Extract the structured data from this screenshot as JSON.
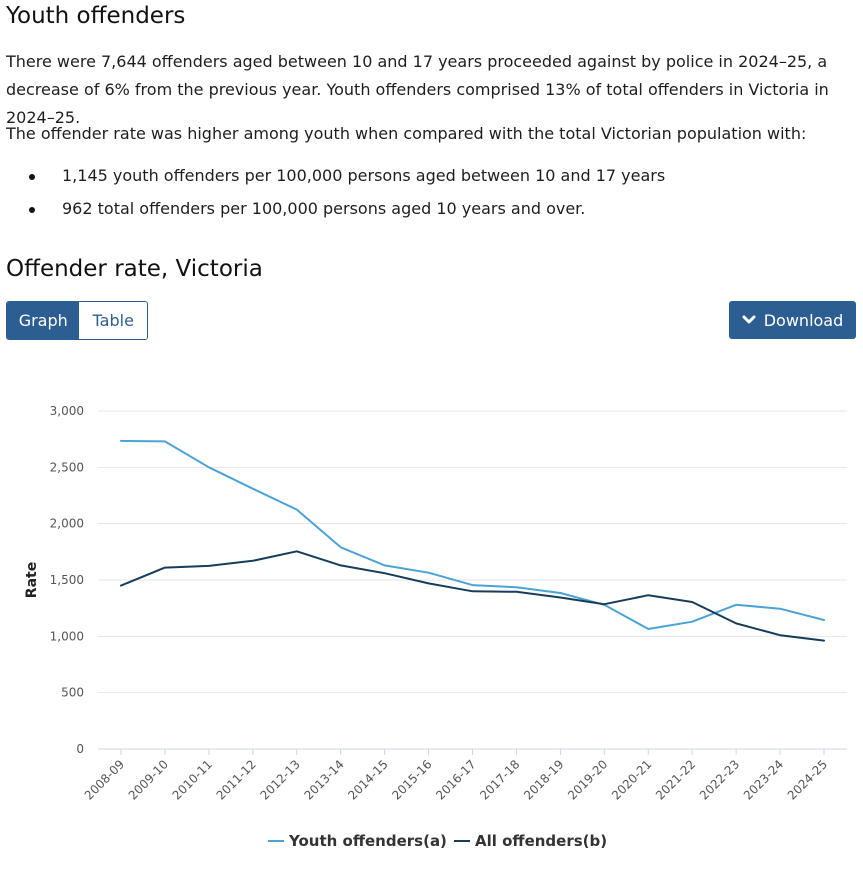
{
  "section": {
    "title": "Youth offenders",
    "paragraph1": "There were 7,644 offenders aged between 10 and 17 years proceeded against by police in 2024–25, a decrease of 6% from the previous year. Youth offenders comprised 13% of total offenders in Victoria in 2024–25.",
    "paragraph2": "The offender rate was higher among youth when compared with the total Victorian population with:",
    "bullets": [
      "1,145 youth offenders per 100,000 persons aged between 10 and 17 years",
      "962 total offenders per 100,000 persons aged 10 years and over."
    ]
  },
  "chart_section": {
    "title": "Offender rate, Victoria",
    "tabs": {
      "graph": "Graph",
      "table": "Table"
    },
    "download_label": "Download"
  },
  "colors": {
    "youth": "#4aa3d4",
    "all": "#173d5c",
    "primary": "#2d5e91"
  },
  "chart_data": {
    "type": "line",
    "title": "Offender rate, Victoria",
    "xlabel": "",
    "ylabel": "Rate",
    "ylim": [
      0,
      3000
    ],
    "yticks": [
      0,
      500,
      1000,
      1500,
      2000,
      2500,
      3000
    ],
    "ytick_labels": [
      "0",
      "500",
      "1,000",
      "1,500",
      "2,000",
      "2,500",
      "3,000"
    ],
    "grid": true,
    "legend_position": "bottom-center",
    "categories": [
      "2008-09",
      "2009-10",
      "2010-11",
      "2011-12",
      "2012-13",
      "2013-14",
      "2014-15",
      "2015-16",
      "2016-17",
      "2017-18",
      "2018-19",
      "2019-20",
      "2020-21",
      "2021-22",
      "2022-23",
      "2023-24",
      "2024-25"
    ],
    "series": [
      {
        "name": "Youth offenders(a)",
        "color_key": "youth",
        "values": [
          2735,
          2730,
          2500,
          2310,
          2125,
          1790,
          1630,
          1565,
          1455,
          1435,
          1385,
          1280,
          1065,
          1130,
          1280,
          1245,
          1145
        ]
      },
      {
        "name": "All offenders(b)",
        "color_key": "all",
        "values": [
          1450,
          1610,
          1625,
          1670,
          1755,
          1630,
          1560,
          1470,
          1400,
          1395,
          1345,
          1285,
          1365,
          1305,
          1115,
          1010,
          962
        ]
      }
    ]
  }
}
